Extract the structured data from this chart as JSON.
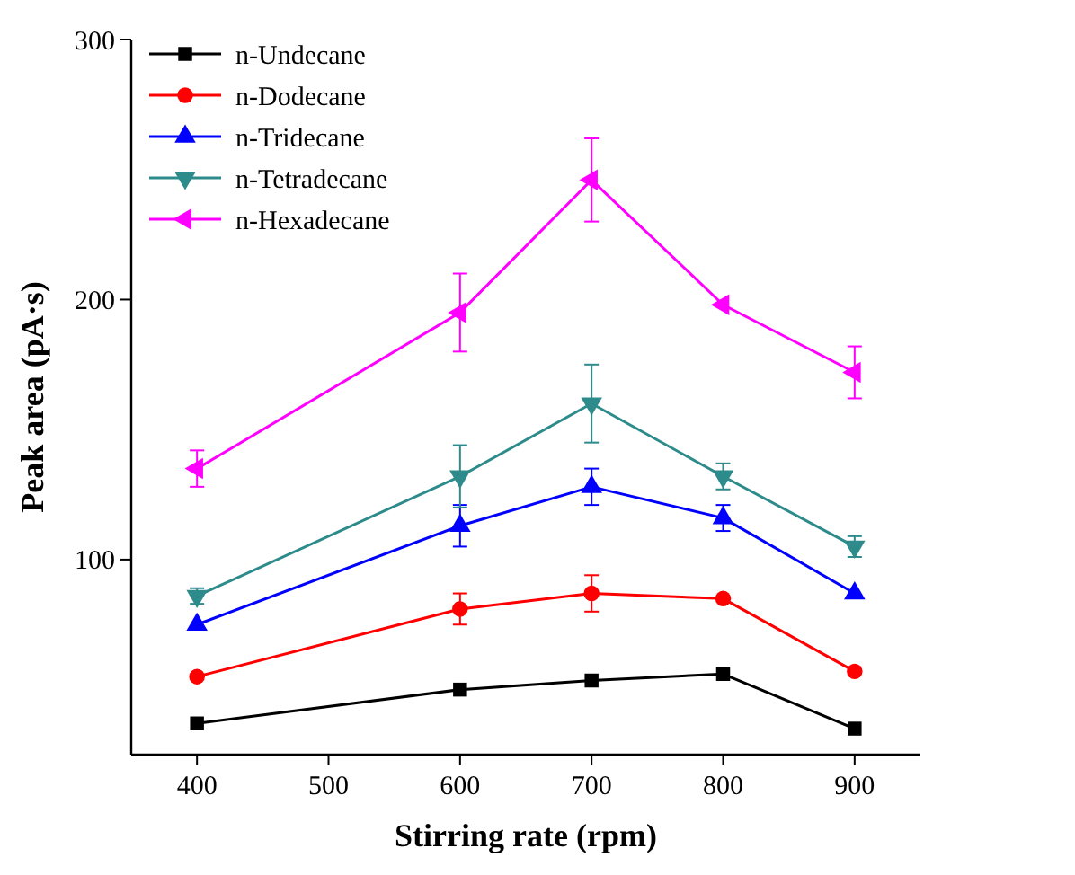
{
  "chart_data": {
    "type": "line",
    "xlabel": "Stirring rate (rpm)",
    "ylabel": "Peak area (pA·s)",
    "x": [
      400,
      600,
      700,
      800,
      900
    ],
    "xlim": [
      350,
      950
    ],
    "xticks": [
      400,
      500,
      600,
      700,
      800,
      900
    ],
    "ylim": [
      25,
      300
    ],
    "yticks": [
      100,
      200,
      300
    ],
    "legend": "top left",
    "grid": false,
    "series": [
      {
        "name": "n-Undecane",
        "color": "#000000",
        "marker": "square",
        "values": [
          37,
          50,
          53.5,
          56,
          35
        ]
      },
      {
        "name": "n-Dodecane",
        "color": "#ff0000",
        "marker": "circle",
        "values": [
          55,
          81,
          87,
          85,
          57
        ],
        "errors": [
          null,
          6,
          7,
          null,
          null
        ]
      },
      {
        "name": "n-Tridecane",
        "color": "#0000ff",
        "marker": "triangle",
        "values": [
          75,
          113,
          128,
          116,
          87
        ],
        "errors": [
          null,
          8,
          7,
          5,
          null
        ]
      },
      {
        "name": "n-Tetradecane",
        "color": "#2e8b8b",
        "marker": "triangle-down",
        "values": [
          86,
          132,
          160,
          132,
          105
        ],
        "errors": [
          3,
          12,
          15,
          5,
          4
        ]
      },
      {
        "name": "n-Hexadecane",
        "color": "#ff00ff",
        "marker": "triangle-left",
        "values": [
          135,
          195,
          246,
          198,
          172
        ],
        "errors": [
          7,
          15,
          16,
          null,
          10
        ]
      }
    ]
  }
}
